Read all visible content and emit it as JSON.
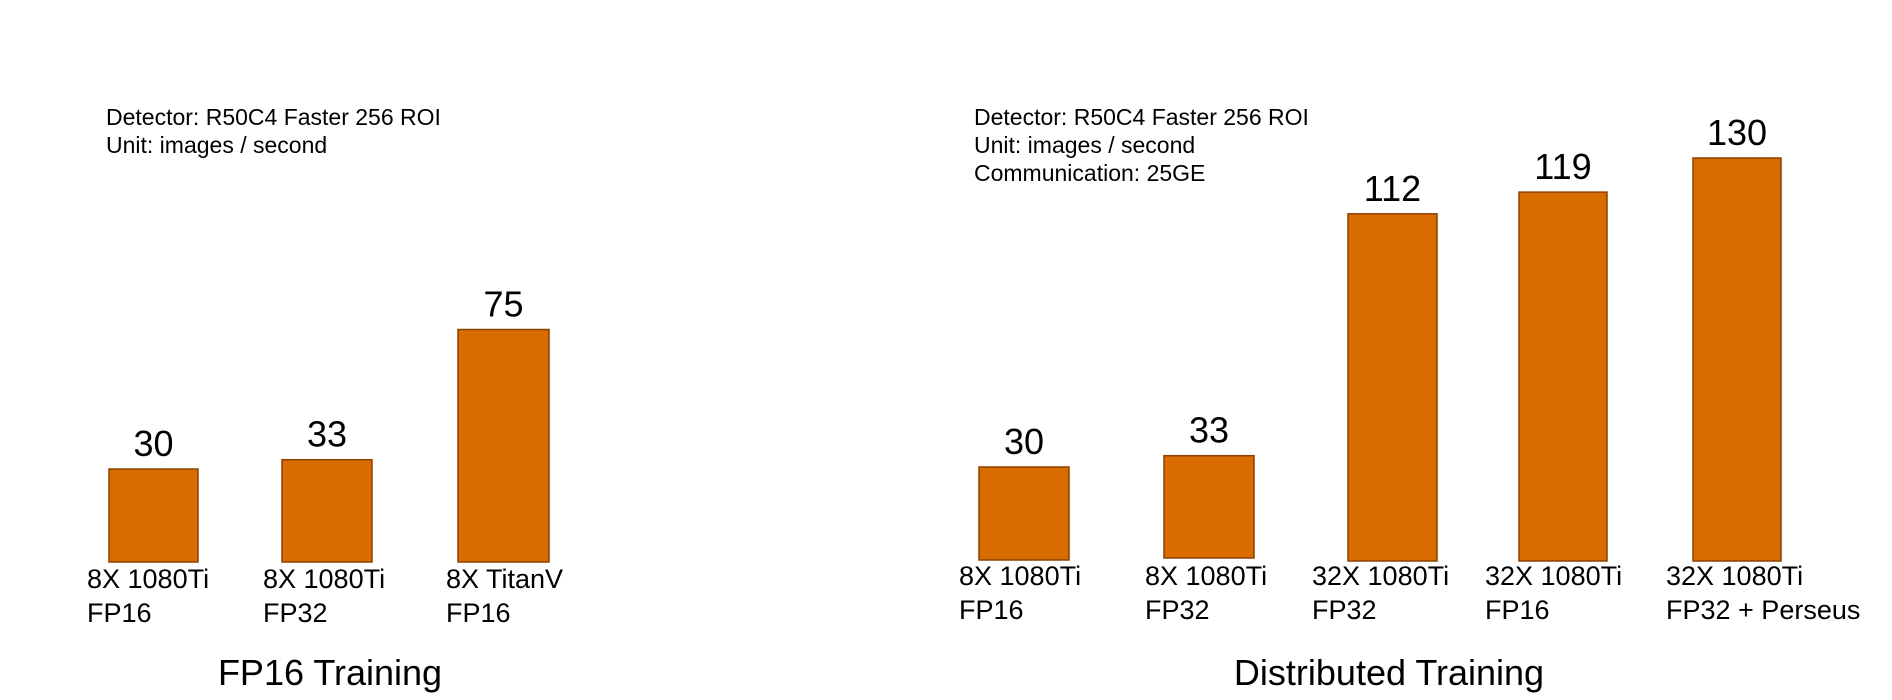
{
  "chart_data": [
    {
      "type": "bar",
      "title": "FP16 Training",
      "notes": [
        "Detector: R50C4 Faster 256 ROI",
        "Unit: images / second"
      ],
      "categories": [
        [
          "8X 1080Ti",
          "FP16"
        ],
        [
          "8X 1080Ti",
          "FP32"
        ],
        [
          "8X TitanV",
          "FP16"
        ]
      ],
      "values": [
        30,
        33,
        75
      ],
      "value_labels": [
        "30",
        "33",
        "75"
      ],
      "ylim": [
        0,
        140
      ]
    },
    {
      "type": "bar",
      "title": "Distributed Training",
      "notes": [
        "Detector: R50C4 Faster 256 ROI",
        "Unit: images / second",
        "Communication: 25GE"
      ],
      "categories": [
        [
          "8X 1080Ti",
          "FP16"
        ],
        [
          "8X 1080Ti",
          "FP32"
        ],
        [
          "32X 1080Ti",
          "FP32"
        ],
        [
          "32X 1080Ti",
          "FP16"
        ],
        [
          "32X 1080Ti",
          "FP32 + Perseus"
        ]
      ],
      "values": [
        30,
        33,
        112,
        119,
        130
      ],
      "value_labels": [
        "30",
        "33",
        "112",
        "119",
        "130"
      ],
      "ylim": [
        0,
        140
      ]
    }
  ],
  "colors": {
    "bar_fill": "#d96c00",
    "bar_stroke": "#8a4200",
    "text": "#000000"
  }
}
